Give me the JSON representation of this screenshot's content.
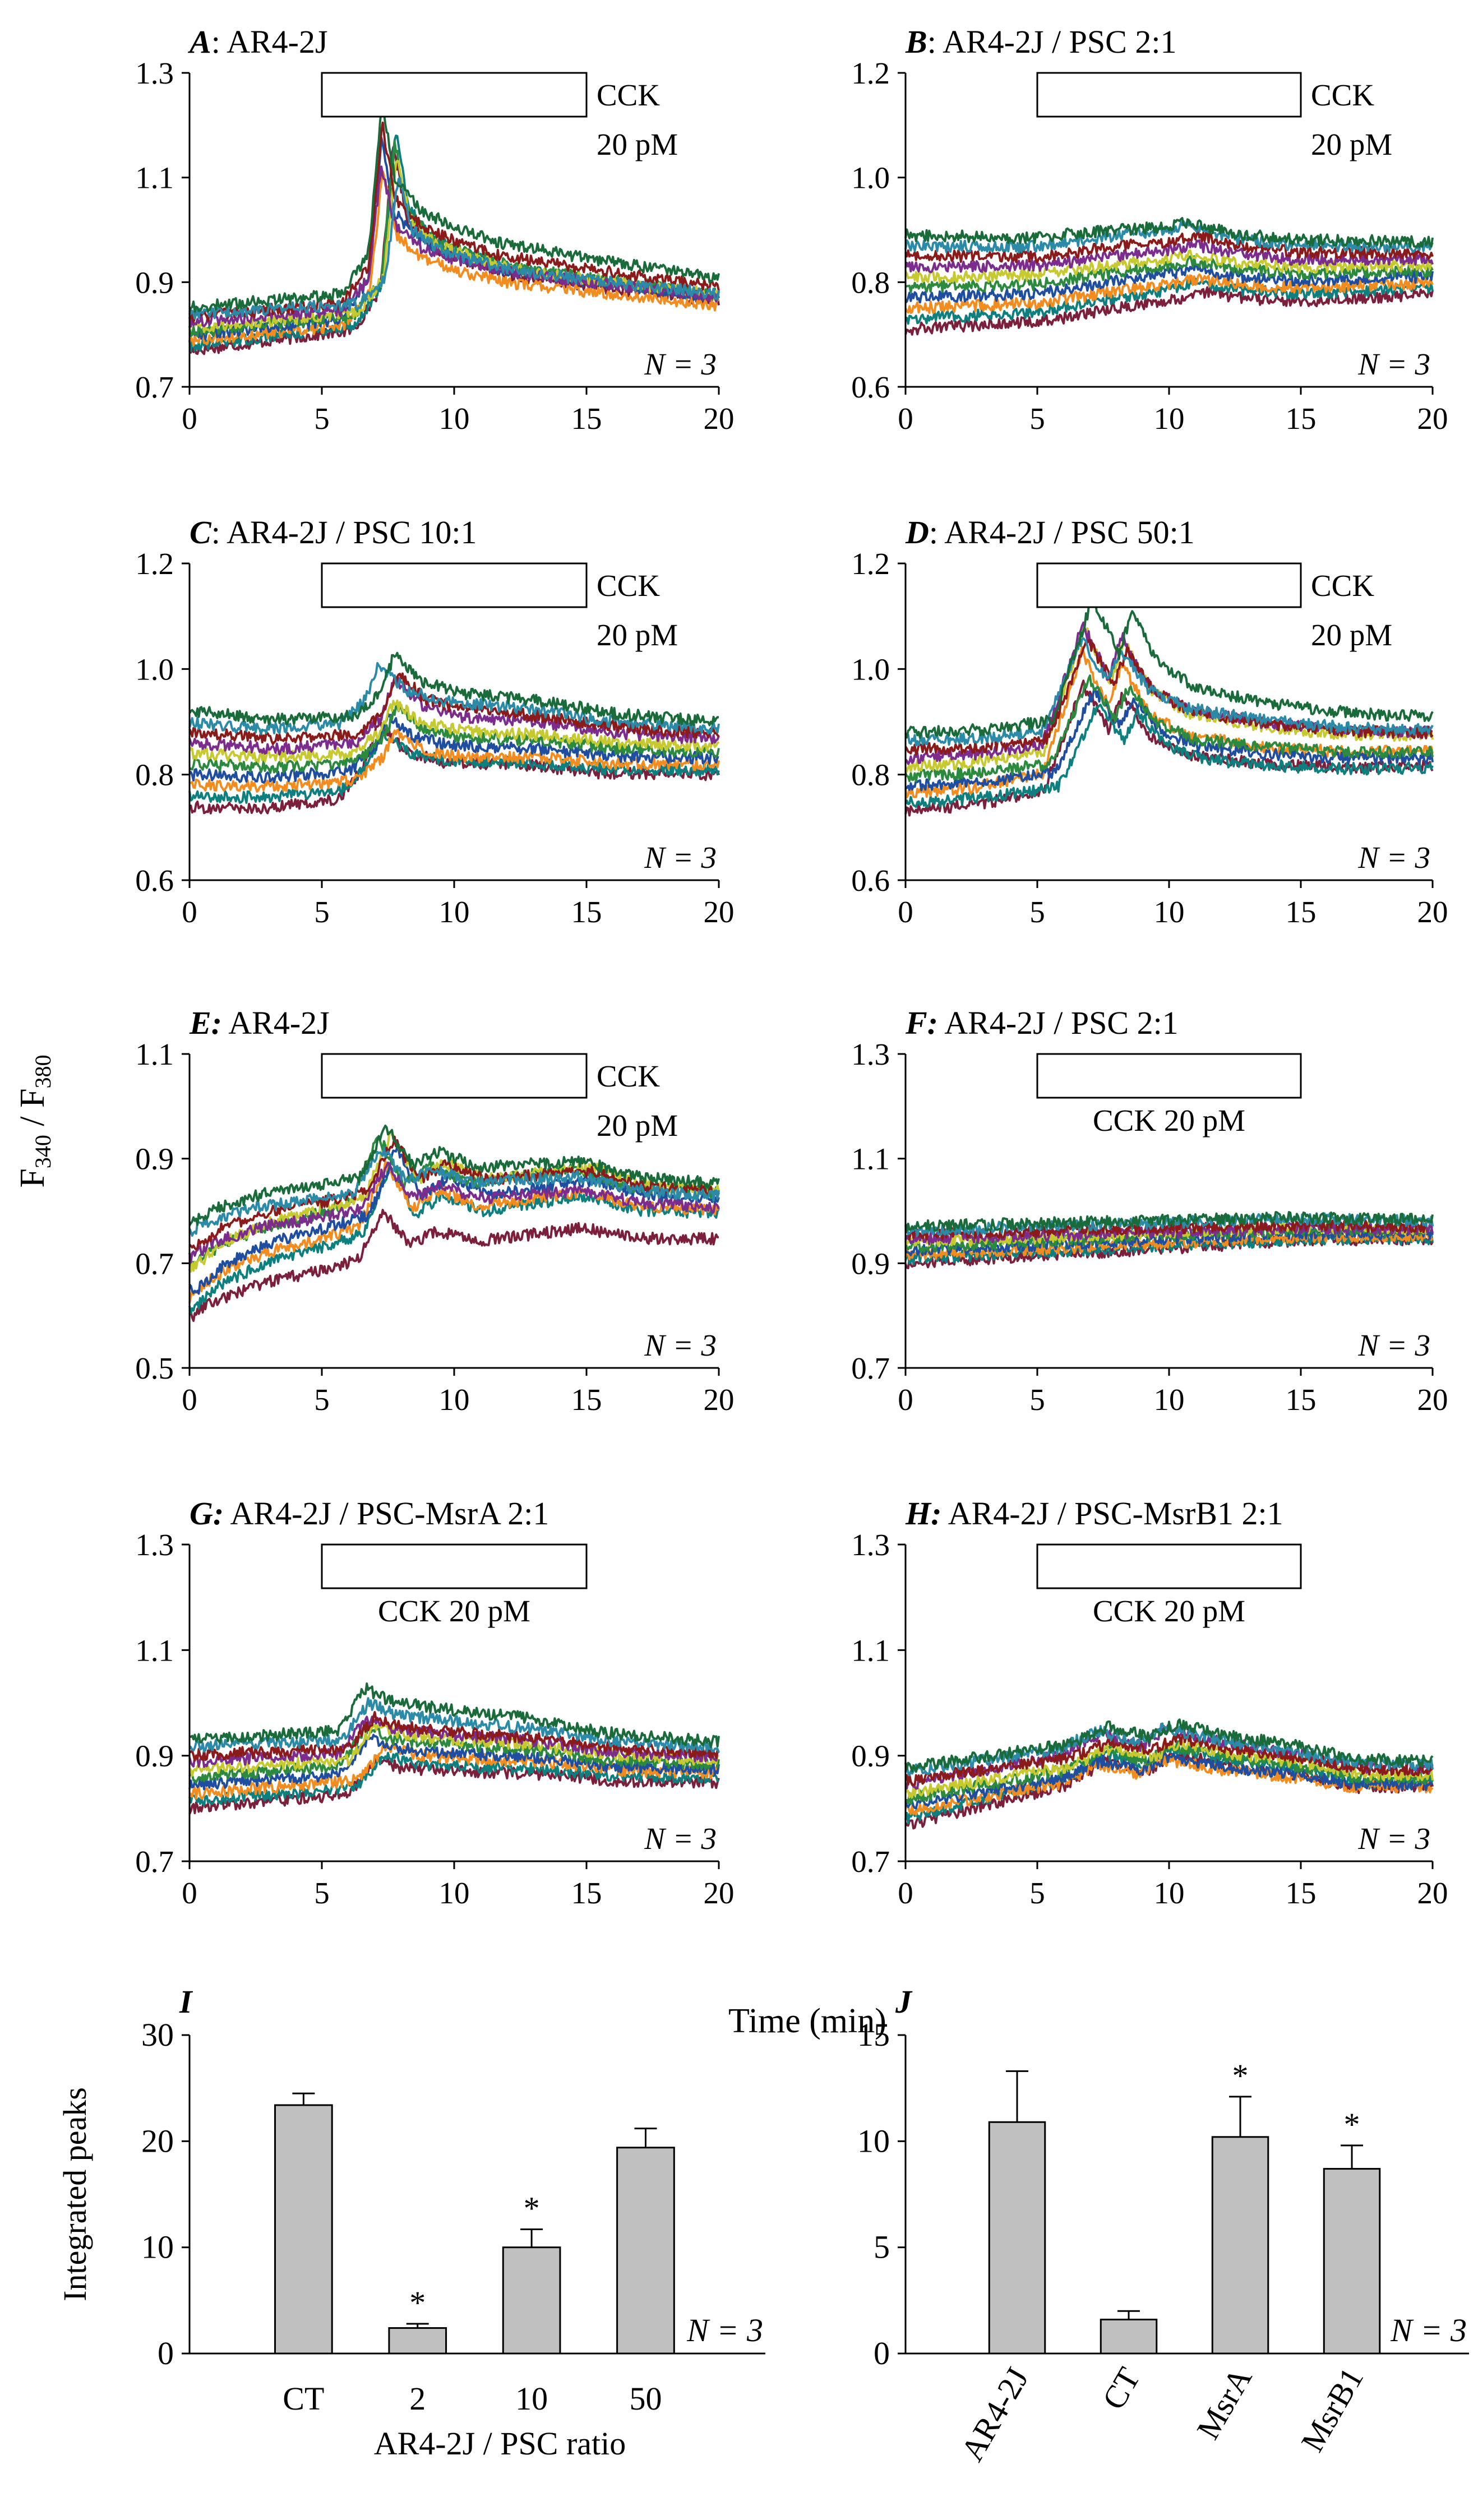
{
  "figure": {
    "shared_ylabel_main": "F",
    "shared_ylabel_sub1": "340",
    "shared_ylabel_sep": " / F",
    "shared_ylabel_sub2": "380",
    "shared_xlabel": "Time (min)"
  },
  "colors": [
    "#7b1f3a",
    "#0e7f7f",
    "#f28c1e",
    "#1f4ea0",
    "#2b8a3e",
    "#c6c930",
    "#7b2c8c",
    "#8b1a1a",
    "#2a8aa8",
    "#1a6b3a"
  ],
  "chart_data": [
    {
      "id": "A",
      "type": "line",
      "letter": "A",
      "title_rest": ": AR4-2J",
      "xlim": [
        0,
        20
      ],
      "ylim": [
        0.7,
        1.3
      ],
      "xticks": [
        "0",
        "5",
        "10",
        "15",
        "20"
      ],
      "yticks": [
        "0.7",
        "0.9",
        "1.1",
        "1.3"
      ],
      "stimulus": {
        "start": 5,
        "end": 15,
        "label_lines": [
          "CCK",
          "20 pM"
        ],
        "label_position": "right"
      },
      "n_label": "N = 3",
      "series_count": 10,
      "trace_template": {
        "x": [
          0,
          2,
          4,
          6,
          7,
          7.5,
          8,
          9,
          10,
          12,
          15,
          20
        ],
        "y": [
          0.8,
          0.81,
          0.82,
          0.83,
          0.9,
          1.15,
          1.02,
          0.97,
          0.95,
          0.92,
          0.9,
          0.87
        ]
      },
      "baseline_range": [
        0.77,
        0.85
      ]
    },
    {
      "id": "B",
      "type": "line",
      "letter": "B",
      "title_rest": ": AR4-2J / PSC 2:1",
      "xlim": [
        0,
        20
      ],
      "ylim": [
        0.6,
        1.2
      ],
      "xticks": [
        "0",
        "5",
        "10",
        "15",
        "20"
      ],
      "yticks": [
        "0.6",
        "0.8",
        "1.0",
        "1.2"
      ],
      "stimulus": {
        "start": 5,
        "end": 15,
        "label_lines": [
          "CCK",
          "20 pM"
        ],
        "label_position": "right"
      },
      "n_label": "N = 3",
      "series_count": 10,
      "trace_template": {
        "x": [
          0,
          5,
          8,
          10,
          11,
          13,
          15,
          20
        ],
        "y": [
          0.84,
          0.84,
          0.86,
          0.87,
          0.88,
          0.86,
          0.85,
          0.85
        ]
      },
      "baseline_range": [
        0.71,
        0.89
      ]
    },
    {
      "id": "C",
      "type": "line",
      "letter": "C",
      "title_rest": ": AR4-2J / PSC 10:1",
      "xlim": [
        0,
        20
      ],
      "ylim": [
        0.6,
        1.2
      ],
      "xticks": [
        "0",
        "5",
        "10",
        "15",
        "20"
      ],
      "yticks": [
        "0.6",
        "0.8",
        "1.0",
        "1.2"
      ],
      "stimulus": {
        "start": 5,
        "end": 15,
        "label_lines": [
          "CCK",
          "20 pM"
        ],
        "label_position": "right"
      },
      "n_label": "N = 3",
      "series_count": 10,
      "trace_template": {
        "x": [
          0,
          3,
          6,
          7,
          7.5,
          8.5,
          10,
          13,
          16,
          20
        ],
        "y": [
          0.85,
          0.84,
          0.85,
          0.9,
          0.97,
          0.92,
          0.9,
          0.89,
          0.87,
          0.86
        ]
      },
      "baseline_range": [
        0.74,
        0.92
      ]
    },
    {
      "id": "D",
      "type": "line",
      "letter": "D",
      "title_rest": ": AR4-2J / PSC 50:1",
      "xlim": [
        0,
        20
      ],
      "ylim": [
        0.6,
        1.2
      ],
      "xticks": [
        "0",
        "5",
        "10",
        "15",
        "20"
      ],
      "yticks": [
        "0.6",
        "0.8",
        "1.0",
        "1.2"
      ],
      "stimulus": {
        "start": 5,
        "end": 15,
        "label_lines": [
          "CCK",
          "20 pM"
        ],
        "label_position": "right"
      },
      "n_label": "N = 3",
      "series_count": 10,
      "trace_template": {
        "x": [
          0,
          3,
          5.5,
          6.5,
          7,
          8,
          8.5,
          9.5,
          11,
          14,
          17,
          20
        ],
        "y": [
          0.79,
          0.8,
          0.82,
          0.95,
          1.02,
          0.93,
          1.0,
          0.92,
          0.88,
          0.86,
          0.85,
          0.85
        ]
      },
      "baseline_range": [
        0.73,
        0.88
      ]
    },
    {
      "id": "E",
      "type": "line",
      "letter": "E:",
      "title_rest": " AR4-2J",
      "xlim": [
        0,
        20
      ],
      "ylim": [
        0.5,
        1.1
      ],
      "xticks": [
        "0",
        "5",
        "10",
        "15",
        "20"
      ],
      "yticks": [
        "0.5",
        "0.7",
        "0.9",
        "1.1"
      ],
      "stimulus": {
        "start": 5,
        "end": 15,
        "label_lines": [
          "CCK",
          "20 pM"
        ],
        "label_position": "right"
      },
      "n_label": "N = 3",
      "series_count": 10,
      "trace_template": {
        "x": [
          0,
          1,
          3,
          5,
          6.5,
          7.5,
          8.5,
          9.5,
          11,
          13,
          15,
          17,
          20
        ],
        "y": [
          0.7,
          0.74,
          0.78,
          0.8,
          0.82,
          0.93,
          0.85,
          0.88,
          0.85,
          0.86,
          0.87,
          0.84,
          0.83
        ]
      },
      "baseline_range": [
        0.59,
        0.77
      ]
    },
    {
      "id": "F",
      "type": "line",
      "letter": "F:",
      "title_rest": " AR4-2J / PSC 2:1",
      "xlim": [
        0,
        20
      ],
      "ylim": [
        0.7,
        1.3
      ],
      "xticks": [
        "0",
        "5",
        "10",
        "15",
        "20"
      ],
      "yticks": [
        "0.7",
        "0.9",
        "1.1",
        "1.3"
      ],
      "stimulus": {
        "start": 5,
        "end": 15,
        "label_lines": [
          "CCK 20 pM"
        ],
        "label_position": "below"
      },
      "n_label": "N = 3",
      "series_count": 10,
      "trace_template": {
        "x": [
          0,
          5,
          10,
          15,
          20
        ],
        "y": [
          0.93,
          0.94,
          0.95,
          0.96,
          0.96
        ]
      },
      "baseline_range": [
        0.9,
        0.97
      ]
    },
    {
      "id": "G",
      "type": "line",
      "letter": "G:",
      "title_rest": " AR4-2J / PSC-MsrA 2:1",
      "xlim": [
        0,
        20
      ],
      "ylim": [
        0.7,
        1.3
      ],
      "xticks": [
        "0",
        "5",
        "10",
        "15",
        "20"
      ],
      "yticks": [
        "0.7",
        "0.9",
        "1.1",
        "1.3"
      ],
      "stimulus": {
        "start": 5,
        "end": 15,
        "label_lines": [
          "CCK 20 pM"
        ],
        "label_position": "below"
      },
      "n_label": "N = 3",
      "series_count": 10,
      "trace_template": {
        "x": [
          0,
          3,
          6,
          7,
          8,
          10,
          13,
          16,
          20
        ],
        "y": [
          0.87,
          0.88,
          0.89,
          0.96,
          0.94,
          0.93,
          0.92,
          0.9,
          0.89
        ]
      },
      "baseline_range": [
        0.8,
        0.93
      ]
    },
    {
      "id": "H",
      "type": "line",
      "letter": "H:",
      "title_rest": " AR4-2J / PSC-MsrB1 2:1",
      "xlim": [
        0,
        20
      ],
      "ylim": [
        0.7,
        1.3
      ],
      "xticks": [
        "0",
        "5",
        "10",
        "15",
        "20"
      ],
      "yticks": [
        "0.7",
        "0.9",
        "1.1",
        "1.3"
      ],
      "stimulus": {
        "start": 5,
        "end": 15,
        "label_lines": [
          "CCK 20 pM"
        ],
        "label_position": "below"
      },
      "n_label": "N = 3",
      "series_count": 10,
      "trace_template": {
        "x": [
          0,
          3,
          6,
          7.5,
          9,
          10,
          12,
          15,
          17,
          20
        ],
        "y": [
          0.8,
          0.83,
          0.86,
          0.9,
          0.88,
          0.91,
          0.89,
          0.87,
          0.85,
          0.85
        ]
      },
      "baseline_range": [
        0.77,
        0.88
      ]
    },
    {
      "id": "I",
      "type": "bar",
      "letter": "I",
      "categories": [
        "CT",
        "2",
        "10",
        "50"
      ],
      "values": [
        23.4,
        2.4,
        10.0,
        19.4
      ],
      "errors": [
        1.1,
        0.4,
        1.7,
        1.8
      ],
      "significant": [
        false,
        true,
        true,
        false
      ],
      "star": "*",
      "ylim": [
        0,
        30
      ],
      "yticks": [
        "0",
        "10",
        "20",
        "30"
      ],
      "ylabel": "Integrated peaks",
      "xlabel": "AR4-2J / PSC ratio",
      "n_label": "N = 3",
      "bar_color": "#c0c0c0"
    },
    {
      "id": "J",
      "type": "bar",
      "letter": "J",
      "categories": [
        "AR4-2J",
        "CT",
        "MsrA",
        "MsrB1"
      ],
      "values": [
        10.9,
        1.6,
        10.2,
        8.7
      ],
      "errors": [
        2.4,
        0.4,
        1.9,
        1.1
      ],
      "significant": [
        false,
        false,
        true,
        true
      ],
      "star": "*",
      "ylim": [
        0,
        15
      ],
      "yticks": [
        "0",
        "5",
        "10",
        "15"
      ],
      "ylabel": "",
      "xlabel": "",
      "n_label": "N = 3",
      "bar_color": "#c0c0c0"
    }
  ]
}
